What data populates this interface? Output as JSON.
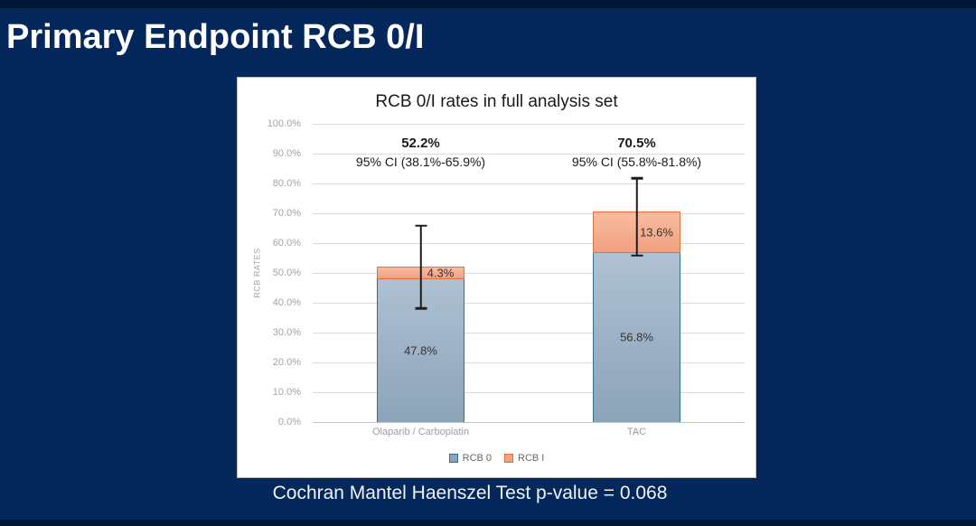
{
  "slide": {
    "title": "Primary Endpoint RCB 0/I",
    "caption": "Cochran Mantel Haenszel Test p-value = 0.068",
    "background_color": "#04285C",
    "title_color": "#FFFFFF"
  },
  "chart_data": {
    "type": "bar",
    "stacked": true,
    "title": "RCB 0/I rates in full analysis set",
    "xlabel": "",
    "ylabel": "RCB RATES",
    "ylim": [
      0,
      100
    ],
    "ytick_step": 10,
    "grid": true,
    "legend_position": "bottom",
    "categories": [
      "Olaparib / Carboplatin",
      "TAC"
    ],
    "series": [
      {
        "name": "RCB 0",
        "values": [
          47.8,
          56.8
        ],
        "value_labels": [
          "47.8%",
          "56.8%"
        ],
        "fill_top": "#AFC1D3",
        "fill_bottom": "#8CA3B9",
        "border": "#31708E"
      },
      {
        "name": "RCB I",
        "values": [
          4.3,
          13.6
        ],
        "value_labels": [
          "4.3%",
          "13.6%"
        ],
        "fill_top": "#F8BCA0",
        "fill_bottom": "#F1A081",
        "border": "#E2703C"
      }
    ],
    "stack_totals": [
      52.2,
      70.5
    ],
    "total_labels": [
      "52.2%",
      "70.5%"
    ],
    "ci_labels": [
      "95% CI (38.1%-65.9%)",
      "95% CI (55.8%-81.8%)"
    ],
    "error_bars": [
      {
        "low": 38.1,
        "high": 65.9
      },
      {
        "low": 55.8,
        "high": 81.8
      }
    ],
    "colors": {
      "error_bar": "#1C1C1C",
      "gridline": "#DCDCDC",
      "axis_line": "#C4C4C4",
      "tick_label": "#A3A3A3"
    }
  }
}
